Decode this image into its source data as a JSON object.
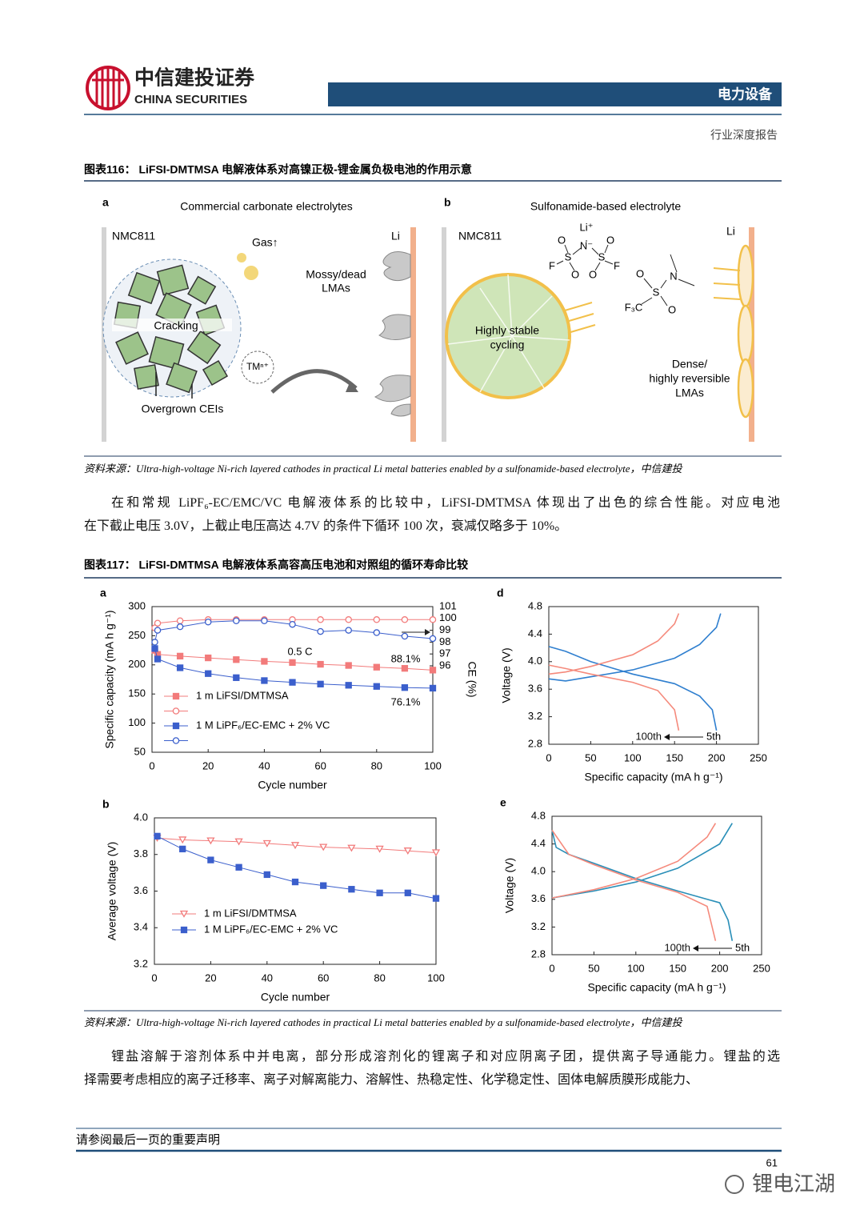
{
  "header": {
    "company_cn": "中信建投证券",
    "company_en": "CHINA SECURITIES",
    "sector": "电力设备",
    "report_type": "行业深度报告"
  },
  "figure116": {
    "title": "图表116：  LiFSI-DMTMSA 电解液体系对高镍正极-锂金属负极电池的作用示意",
    "panel_a": {
      "label": "a",
      "title": "Commercial carbonate electrolytes",
      "cathode": "NMC811",
      "gas": "Gas↑",
      "anode": "Li",
      "lma": [
        "Mossy/dead",
        "LMAs"
      ],
      "cracking": "Cracking",
      "tm": "TMⁿ⁺",
      "cei": "Overgrown CEIs"
    },
    "panel_b": {
      "label": "b",
      "title": "Sulfonamide-based electrolyte",
      "cathode": "NMC811",
      "anode": "Li",
      "cycling": [
        "Highly stable",
        "cycling"
      ],
      "lma": [
        "Dense/",
        "highly reversible",
        "LMAs"
      ],
      "lifsi_atoms": [
        "Li⁺",
        "O",
        "N⁻",
        "O",
        "F",
        "S",
        "S",
        "F",
        "O",
        "O"
      ],
      "dmtmsa_atoms": [
        "O",
        "N",
        "S",
        "O",
        "F₃C"
      ]
    },
    "source": "资料来源：Ultra-high-voltage Ni-rich layered cathodes in practical Li metal batteries enabled by a sulfonamide-based electrolyte，中信建投"
  },
  "paragraph1": [
    "在和常规 LiPF₆-EC/EMC/VC 电解液体系的比较中，LiFSI-DMTMSA 体现出了出色的综合性能。对应电池",
    "在下截止电压 3.0V，上截止电压高达 4.7V 的条件下循环 100 次，衰减仅略多于 10%。"
  ],
  "figure117": {
    "title": "图表117：  LiFSI-DMTMSA 电解液体系高容高压电池和对照组的循环寿命比较",
    "chart_data": [
      {
        "type": "scatter",
        "label": "a",
        "xlabel": "Cycle number",
        "ylabel": "Specific capacity (mA h g⁻¹)",
        "y2label": "CE (%)",
        "xlim": [
          0,
          100
        ],
        "xticks": [
          0,
          20,
          40,
          60,
          80,
          100
        ],
        "ylim": [
          50,
          300
        ],
        "yticks": [
          50,
          100,
          150,
          200,
          250,
          300
        ],
        "y2lim": [
          88.7,
          101
        ],
        "y2ticks": [
          96,
          97,
          98,
          99,
          100,
          101
        ],
        "annotations": [
          "0.5 C",
          "88.1%",
          "76.1%"
        ],
        "legend": "lower left",
        "series": [
          {
            "name": "1 m LiFSI/DMTMSA",
            "color": "#f27b7b",
            "marker": "square",
            "filled": true,
            "x": [
              1,
              2,
              10,
              20,
              30,
              40,
              50,
              60,
              70,
              80,
              90,
              100
            ],
            "values": [
              225,
              218,
              215,
              212,
              209,
              206,
              204,
              201,
              199,
              196,
              194,
              191
            ]
          },
          {
            "color": "#f27b7b",
            "marker": "circle",
            "filled": false,
            "axis": "y2",
            "x": [
              1,
              2,
              10,
              20,
              30,
              40,
              50,
              60,
              70,
              80,
              90,
              100
            ],
            "values": [
              99.2,
              99.6,
              99.8,
              99.9,
              99.9,
              99.9,
              99.9,
              99.9,
              99.9,
              99.9,
              99.9,
              99.9
            ]
          },
          {
            "name": "1 M LiPF₆/EC-EMC + 2% VC",
            "color": "#3b5fcc",
            "marker": "square",
            "filled": true,
            "x": [
              1,
              2,
              10,
              20,
              30,
              40,
              50,
              60,
              70,
              80,
              90,
              100
            ],
            "values": [
              228,
              210,
              195,
              185,
              178,
              173,
              170,
              167,
              165,
              163,
              161,
              160
            ]
          },
          {
            "color": "#3b5fcc",
            "marker": "circle",
            "filled": false,
            "axis": "y2",
            "x": [
              1,
              2,
              10,
              20,
              30,
              40,
              50,
              60,
              70,
              80,
              90,
              100
            ],
            "values": [
              98.0,
              99.0,
              99.3,
              99.7,
              99.8,
              99.8,
              99.5,
              98.9,
              99.0,
              98.8,
              98.5,
              98.3
            ]
          }
        ]
      },
      {
        "type": "line",
        "label": "d",
        "xlabel": "Specific capacity (mA h g⁻¹)",
        "ylabel": "Voltage (V)",
        "xlim": [
          0,
          250
        ],
        "xticks": [
          0,
          50,
          100,
          150,
          200,
          250
        ],
        "ylim": [
          2.8,
          4.8
        ],
        "yticks": [
          2.8,
          3.2,
          3.6,
          {
            "value": 4,
            "label": "4.0"
          },
          4.4,
          4.8
        ],
        "legend": "lower right",
        "series": [
          {
            "name": "5th",
            "color": "#2f7fcf",
            "x": [
              0,
              20,
              50,
              100,
              150,
              180,
              200,
              205,
              null,
              0,
              20,
              50,
              100,
              150,
              180,
              195,
              200
            ],
            "values": [
              3.75,
              3.72,
              3.78,
              3.88,
              4.05,
              4.25,
              4.5,
              4.7,
              null,
              4.22,
              4.15,
              4.0,
              3.82,
              3.68,
              3.5,
              3.3,
              3.0
            ]
          },
          {
            "name": "100th",
            "color": "#f58a7c",
            "x": [
              0,
              20,
              50,
              100,
              130,
              150,
              155,
              null,
              0,
              20,
              50,
              100,
              130,
              150,
              155
            ],
            "values": [
              3.82,
              3.85,
              3.93,
              4.1,
              4.3,
              4.55,
              4.7,
              null,
              3.95,
              3.9,
              3.82,
              3.7,
              3.58,
              3.3,
              3.0
            ]
          }
        ]
      },
      {
        "type": "scatter",
        "label": "b",
        "ylabel": "Average voltage (V)",
        "xlabel": "Cycle number",
        "xlim": [
          0,
          100
        ],
        "xticks": [
          0,
          20,
          40,
          60,
          80,
          100
        ],
        "ylim": [
          3.2,
          4.0
        ],
        "yticks": [
          3.2,
          3.4,
          3.6,
          3.8,
          {
            "value": 4,
            "label": "4.0"
          }
        ],
        "legend": "lower left",
        "series": [
          {
            "name": "1 m LiFSI/DMTMSA",
            "color": "#f27b7b",
            "marker": "triangle",
            "filled": false,
            "x": [
              1,
              10,
              20,
              30,
              40,
              50,
              60,
              70,
              80,
              90,
              100
            ],
            "values": [
              3.89,
              3.88,
              3.875,
              3.87,
              3.86,
              3.85,
              3.84,
              3.835,
              3.83,
              3.82,
              3.81
            ]
          },
          {
            "name": "1 M LiPF₆/EC-EMC + 2% VC",
            "color": "#3b5fcc",
            "marker": "square",
            "filled": true,
            "x": [
              1,
              10,
              20,
              30,
              40,
              50,
              60,
              70,
              80,
              90,
              100
            ],
            "values": [
              3.9,
              3.83,
              3.77,
              3.73,
              3.69,
              3.65,
              3.63,
              3.61,
              3.59,
              3.59,
              3.56
            ]
          }
        ]
      },
      {
        "type": "line",
        "label": "e",
        "xlabel": "Specific capacity (mA h g⁻¹)",
        "ylabel": "Voltage (V)",
        "xlim": [
          0,
          250
        ],
        "xticks": [
          0,
          50,
          100,
          150,
          200,
          250
        ],
        "ylim": [
          2.8,
          4.8
        ],
        "yticks": [
          2.8,
          3.2,
          3.6,
          {
            "value": 4,
            "label": "4.0"
          },
          4.4,
          4.8
        ],
        "legend": "lower right",
        "series": [
          {
            "name": "5th",
            "color": "#2a8fb8",
            "x": [
              0,
              20,
              50,
              100,
              150,
              200,
              215,
              null,
              0,
              5,
              20,
              50,
              100,
              150,
              200,
              210,
              215
            ],
            "values": [
              3.62,
              3.66,
              3.72,
              3.85,
              4.05,
              4.4,
              4.7,
              null,
              4.6,
              4.35,
              4.25,
              4.12,
              3.9,
              3.72,
              3.55,
              3.3,
              3.0
            ]
          },
          {
            "name": "100th",
            "color": "#f58a7c",
            "x": [
              0,
              50,
              100,
              150,
              185,
              195,
              null,
              0,
              20,
              50,
              100,
              150,
              185,
              195
            ],
            "values": [
              3.62,
              3.74,
              3.9,
              4.15,
              4.5,
              4.7,
              null,
              4.6,
              4.25,
              4.1,
              3.88,
              3.7,
              3.5,
              3.0
            ]
          }
        ]
      }
    ],
    "source": "资料来源：Ultra-high-voltage Ni-rich layered cathodes in practical Li metal batteries enabled by a sulfonamide-based electrolyte，中信建投"
  },
  "paragraph2": [
    "锂盐溶解于溶剂体系中并电离，部分形成溶剂化的锂离子和对应阴离子团，提供离子导通能力。锂盐的选",
    "择需要考虑相应的离子迁移率、离子对解离能力、溶解性、热稳定性、化学稳定性、固体电解质膜形成能力、"
  ],
  "footer": {
    "disclaimer": "请参阅最后一页的重要声明",
    "page": 61,
    "watermark": "锂电江湖"
  }
}
